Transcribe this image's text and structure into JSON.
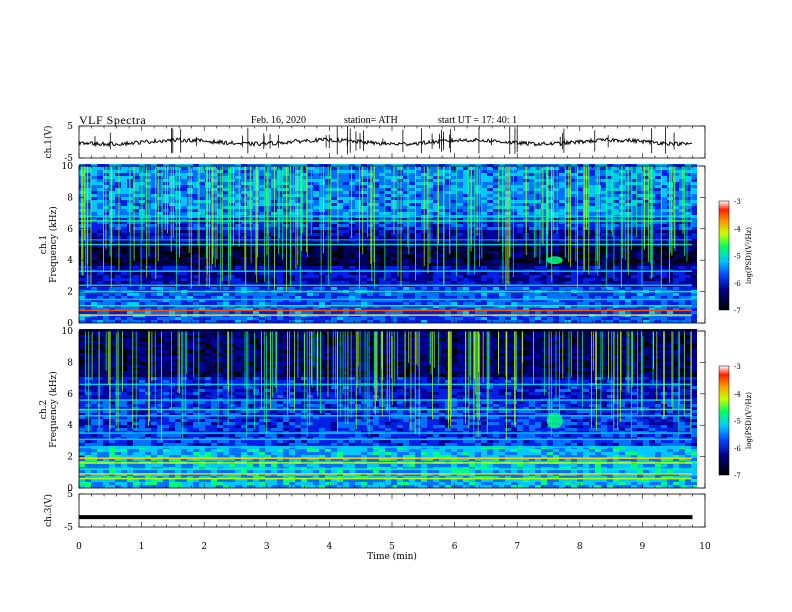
{
  "header": {
    "title": "VLF  Spectra",
    "date": "Feb. 16, 2020",
    "station": "station= ATH",
    "start": "start  UT  =   17: 40: 1"
  },
  "chart_data": [
    {
      "type": "line",
      "ylabel": "ch.1(V)",
      "ylim": [
        -5,
        5
      ],
      "yticks": [
        "5",
        "-5"
      ],
      "x_range_min": [
        0,
        9.8
      ],
      "baseline_volts": 0
    },
    {
      "type": "heatmap",
      "ylabel": "ch.1\nFrequency (kHz)",
      "ylim": [
        0,
        10
      ],
      "yticks": [
        "0",
        "2",
        "4",
        "6",
        "8",
        "10"
      ],
      "colorbar": {
        "label": "log(PSD)(V²/Hz)",
        "range": [
          -7,
          -3
        ],
        "ticks": [
          "-3",
          "-4",
          "-5",
          "-6",
          "-7"
        ]
      }
    },
    {
      "type": "heatmap",
      "ylabel": "ch.2\nFrequency (kHz)",
      "ylim": [
        0,
        10
      ],
      "yticks": [
        "0",
        "2",
        "4",
        "6",
        "8",
        "10"
      ],
      "colorbar": {
        "label": "log(PSD)(V²/Hz)",
        "range": [
          -7,
          -3
        ],
        "ticks": [
          "-3",
          "-4",
          "-5",
          "-6",
          "-7"
        ]
      }
    },
    {
      "type": "line",
      "ylabel": "ch.3(V)",
      "ylim": [
        -5,
        5
      ],
      "yticks": [
        "5",
        "-5"
      ],
      "baseline_volts": -2,
      "xlabel": "Time  (min)",
      "xlim": [
        0,
        10
      ],
      "xticks": [
        "0",
        "1",
        "2",
        "3",
        "4",
        "5",
        "6",
        "7",
        "8",
        "9",
        "10"
      ]
    }
  ],
  "colors": {
    "background": "#ffffff",
    "axis": "#000000",
    "trace": "#000000"
  }
}
